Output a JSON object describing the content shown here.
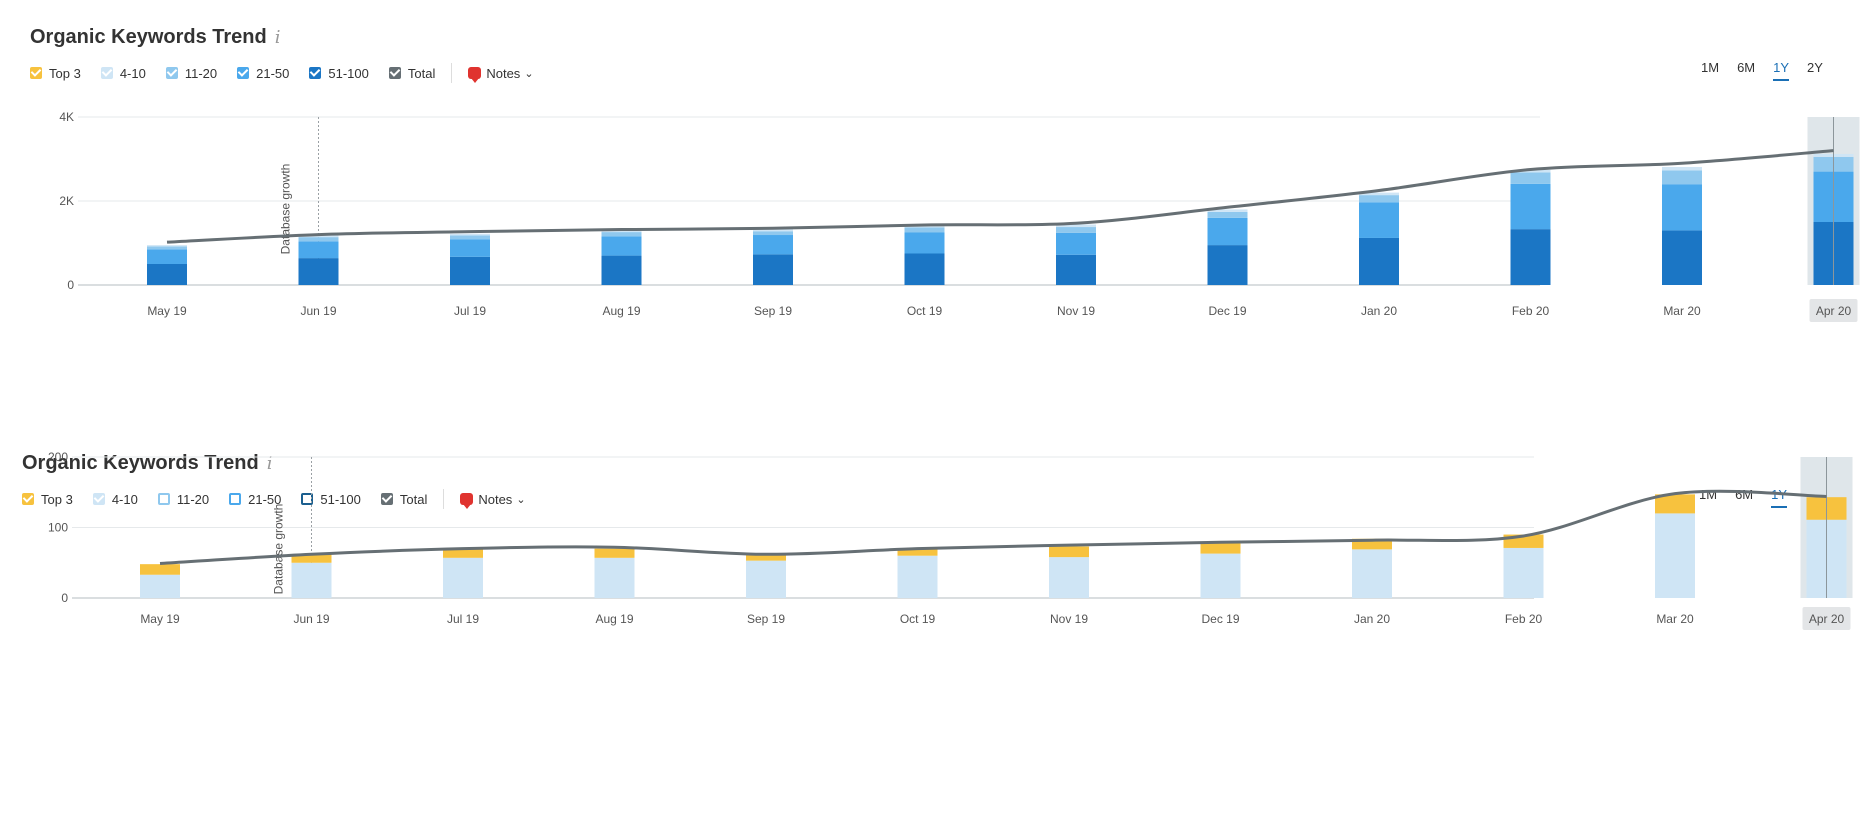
{
  "panels": [
    {
      "title": "Organic Keywords Trend",
      "info_glyph": "i",
      "legend": [
        {
          "label": "Top 3",
          "color": "#f7c23e",
          "checked": true
        },
        {
          "label": "4-10",
          "color": "#cfe5f5",
          "checked": true
        },
        {
          "label": "11-20",
          "color": "#8fc8ee",
          "checked": true
        },
        {
          "label": "21-50",
          "color": "#4aa8ec",
          "checked": true
        },
        {
          "label": "51-100",
          "color": "#1b76c5",
          "checked": true
        },
        {
          "label": "Total",
          "color": "#666f74",
          "checked": true
        }
      ],
      "notes_label": "Notes",
      "periods": [
        {
          "label": "1M",
          "active": false
        },
        {
          "label": "6M",
          "active": false
        },
        {
          "label": "1Y",
          "active": true
        },
        {
          "label": "2Y",
          "active": false
        }
      ],
      "annotation": "Database growth"
    },
    {
      "title": "Organic Keywords Trend",
      "info_glyph": "i",
      "legend": [
        {
          "label": "Top 3",
          "color": "#f7c23e",
          "checked": true
        },
        {
          "label": "4-10",
          "color": "#cfe5f5",
          "checked": true
        },
        {
          "label": "11-20",
          "color": "#8fc8ee",
          "checked": false
        },
        {
          "label": "21-50",
          "color": "#4aa8ec",
          "checked": false
        },
        {
          "label": "51-100",
          "color": "#1b5f8f",
          "checked": false
        },
        {
          "label": "Total",
          "color": "#666f74",
          "checked": true
        }
      ],
      "notes_label": "Notes",
      "periods": [
        {
          "label": "1M",
          "active": false
        },
        {
          "label": "6M",
          "active": false
        },
        {
          "label": "1Y",
          "active": true
        },
        {
          "label": "2Y",
          "active": false
        }
      ],
      "annotation": "Database growth"
    }
  ],
  "chart_data": [
    {
      "type": "bar",
      "stacked": true,
      "title": "Organic Keywords Trend",
      "categories": [
        "May 19",
        "Jun 19",
        "Jul 19",
        "Aug 19",
        "Sep 19",
        "Oct 19",
        "Nov 19",
        "Dec 19",
        "Jan 20",
        "Feb 20",
        "Mar 20",
        "Apr 20"
      ],
      "ylim": [
        0,
        4000
      ],
      "yticks": [
        0,
        2000,
        4000
      ],
      "ytick_labels": [
        "0",
        "2K",
        "4K"
      ],
      "grid": true,
      "legend_position": "top-left",
      "highlighted_category": "Apr 20",
      "annotation": {
        "label": "Database growth",
        "category": "Jun 19"
      },
      "series": [
        {
          "name": "51-100",
          "color": "#1b76c5",
          "values": [
            500,
            640,
            670,
            700,
            730,
            750,
            720,
            950,
            1120,
            1330,
            1300,
            1500
          ]
        },
        {
          "name": "21-50",
          "color": "#4aa8ec",
          "values": [
            350,
            400,
            420,
            460,
            460,
            500,
            520,
            650,
            850,
            1080,
            1100,
            1200
          ]
        },
        {
          "name": "11-20",
          "color": "#8fc8ee",
          "values": [
            70,
            100,
            90,
            100,
            90,
            120,
            140,
            140,
            170,
            270,
            330,
            350
          ]
        },
        {
          "name": "4-10",
          "color": "#cfe5f5",
          "values": [
            30,
            40,
            40,
            50,
            50,
            60,
            60,
            60,
            60,
            60,
            80,
            70
          ]
        },
        {
          "name": "Top 3",
          "color": "#f7c23e",
          "values": [
            0,
            0,
            0,
            0,
            0,
            0,
            0,
            0,
            0,
            0,
            0,
            0
          ]
        }
      ],
      "line": {
        "name": "Total",
        "color": "#666f74",
        "values": [
          1020,
          1200,
          1270,
          1320,
          1350,
          1430,
          1470,
          1850,
          2250,
          2750,
          2900,
          3200
        ]
      }
    },
    {
      "type": "bar",
      "stacked": true,
      "title": "Organic Keywords Trend",
      "categories": [
        "May 19",
        "Jun 19",
        "Jul 19",
        "Aug 19",
        "Sep 19",
        "Oct 19",
        "Nov 19",
        "Dec 19",
        "Jan 20",
        "Feb 20",
        "Mar 20",
        "Apr 20"
      ],
      "ylim": [
        0,
        200
      ],
      "yticks": [
        0,
        100,
        200
      ],
      "ytick_labels": [
        "0",
        "100",
        "200"
      ],
      "grid": true,
      "legend_position": "top-left",
      "highlighted_category": "Apr 20",
      "annotation": {
        "label": "Database growth",
        "category": "Jun 19"
      },
      "series": [
        {
          "name": "4-10",
          "color": "#cfe5f5",
          "values": [
            33,
            50,
            57,
            57,
            53,
            60,
            58,
            63,
            69,
            71,
            120,
            111
          ]
        },
        {
          "name": "Top 3",
          "color": "#f7c23e",
          "values": [
            15,
            12,
            12,
            13,
            9,
            10,
            15,
            15,
            15,
            19,
            27,
            32
          ]
        }
      ],
      "line": {
        "name": "Total",
        "color": "#666f74",
        "values": [
          49,
          62,
          70,
          72,
          62,
          70,
          75,
          79,
          82,
          88,
          148,
          144
        ]
      }
    }
  ]
}
